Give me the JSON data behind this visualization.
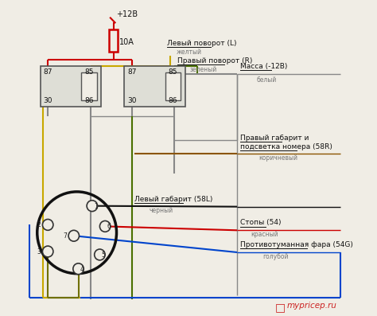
{
  "bg": "#f0ede5",
  "colors": {
    "red": "#cc0000",
    "yellow": "#c8a800",
    "green": "#4a7000",
    "gray": "#888888",
    "brown": "#8B5500",
    "black_wire": "#111111",
    "dark_red": "#aa0000",
    "blue": "#0044cc",
    "olive": "#707000"
  },
  "labels": {
    "power": "+12В",
    "fuse": "10А",
    "left_turn": "Левый поворот (L)",
    "left_turn_sub": "желтый",
    "right_turn": "Правый поворот (R)",
    "right_turn_sub": "зеленый",
    "mass": "Масса (-12В)",
    "mass_sub": "белый",
    "right_marker_1": "Правый габарит и",
    "right_marker_2": "подсветка номера (58R)",
    "right_marker_sub": "коричневый",
    "left_marker": "Левый габарит (58L)",
    "left_marker_sub": "черный",
    "brake": "Стопы (54)",
    "brake_sub": "красный",
    "fog": "Противотуманная фара (54G)",
    "fog_sub": "голубой",
    "watermark": "mypricep.ru"
  }
}
